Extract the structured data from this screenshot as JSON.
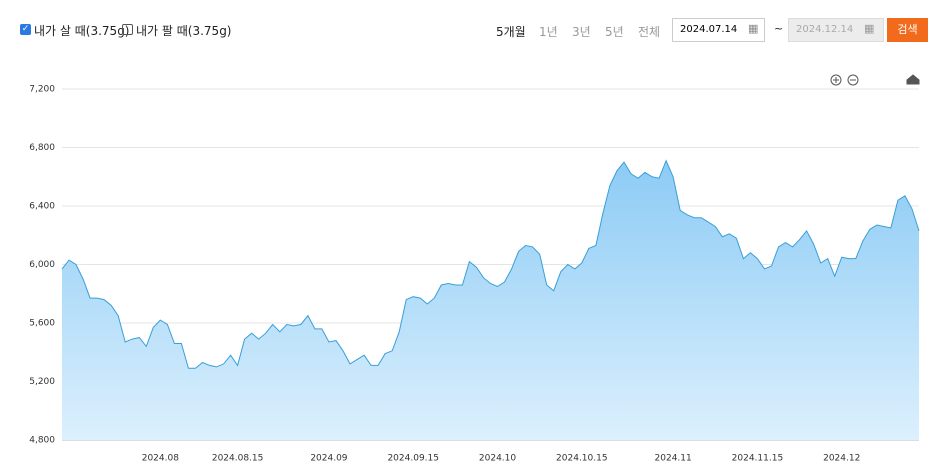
{
  "controls": {
    "sell_label": "내가 팔 때(3.75g)",
    "periods": [
      "5개월",
      "1년",
      "3년",
      "5년",
      "전체"
    ],
    "start_date": "2024.07.14",
    "tilde": "~",
    "end_date": "2024.12.14",
    "search": "검색"
  },
  "chart_data": {
    "type": "area",
    "color": "#3a9fd6",
    "grid": true,
    "ylim": [
      4800,
      7200
    ],
    "yticks": [
      {
        "value": 4800,
        "label": "4,800"
      },
      {
        "value": 5200,
        "label": "5,200"
      },
      {
        "value": 5600,
        "label": "5,600"
      },
      {
        "value": 6000,
        "label": "6,000"
      },
      {
        "value": 6400,
        "label": "6,400"
      },
      {
        "value": 6800,
        "label": "6,800"
      },
      {
        "value": 7200,
        "label": "7,200"
      }
    ],
    "categories": [
      null,
      null,
      null,
      null,
      null,
      null,
      null,
      null,
      null,
      null,
      null,
      null,
      null,
      null,
      "2024.08",
      null,
      null,
      null,
      null,
      null,
      null,
      null,
      null,
      null,
      null,
      "2024.08.15",
      null,
      null,
      null,
      null,
      null,
      null,
      null,
      null,
      null,
      null,
      null,
      null,
      "2024.09",
      null,
      null,
      null,
      null,
      null,
      null,
      null,
      null,
      null,
      null,
      null,
      "2024.09.15",
      null,
      null,
      null,
      null,
      null,
      null,
      null,
      null,
      null,
      null,
      null,
      "2024.10",
      null,
      null,
      null,
      null,
      null,
      null,
      null,
      null,
      null,
      null,
      null,
      "2024.10.15",
      null,
      null,
      null,
      null,
      null,
      null,
      null,
      null,
      null,
      null,
      null,
      null,
      "2024.11",
      null,
      null,
      null,
      null,
      null,
      null,
      null,
      null,
      null,
      null,
      null,
      "2024.11.15",
      null,
      null,
      null,
      null,
      null,
      null,
      null,
      null,
      null,
      null,
      null,
      "2024.12",
      null,
      null,
      null,
      null,
      null,
      null,
      null,
      null,
      null,
      null,
      null
    ],
    "series": [
      {
        "name": "내가 살 때(3.75g)",
        "color": "#3a9fd6",
        "values": [
          5970,
          6030,
          6000,
          5900,
          5770,
          5770,
          5760,
          5720,
          5650,
          5470,
          5490,
          5500,
          5440,
          5570,
          5620,
          5590,
          5460,
          5460,
          5290,
          5290,
          5330,
          5310,
          5300,
          5320,
          5380,
          5310,
          5490,
          5530,
          5490,
          5530,
          5590,
          5540,
          5590,
          5580,
          5590,
          5650,
          5560,
          5560,
          5470,
          5480,
          5410,
          5320,
          5350,
          5380,
          5310,
          5310,
          5390,
          5410,
          5540,
          5760,
          5780,
          5770,
          5730,
          5770,
          5860,
          5870,
          5860,
          5860,
          6020,
          5980,
          5910,
          5870,
          5850,
          5880,
          5970,
          6090,
          6130,
          6120,
          6070,
          5860,
          5820,
          5950,
          6000,
          5970,
          6010,
          6110,
          6130,
          6350,
          6540,
          6640,
          6700,
          6620,
          6590,
          6630,
          6600,
          6590,
          6710,
          6600,
          6370,
          6340,
          6320,
          6320,
          6290,
          6260,
          6190,
          6210,
          6180,
          6040,
          6080,
          6040,
          5970,
          5990,
          6120,
          6150,
          6120,
          6170,
          6230,
          6140,
          6010,
          6040,
          5920,
          6050,
          6040,
          6040,
          6160,
          6240,
          6270,
          6260,
          6250,
          6440,
          6470,
          6380,
          6230
        ]
      }
    ]
  }
}
